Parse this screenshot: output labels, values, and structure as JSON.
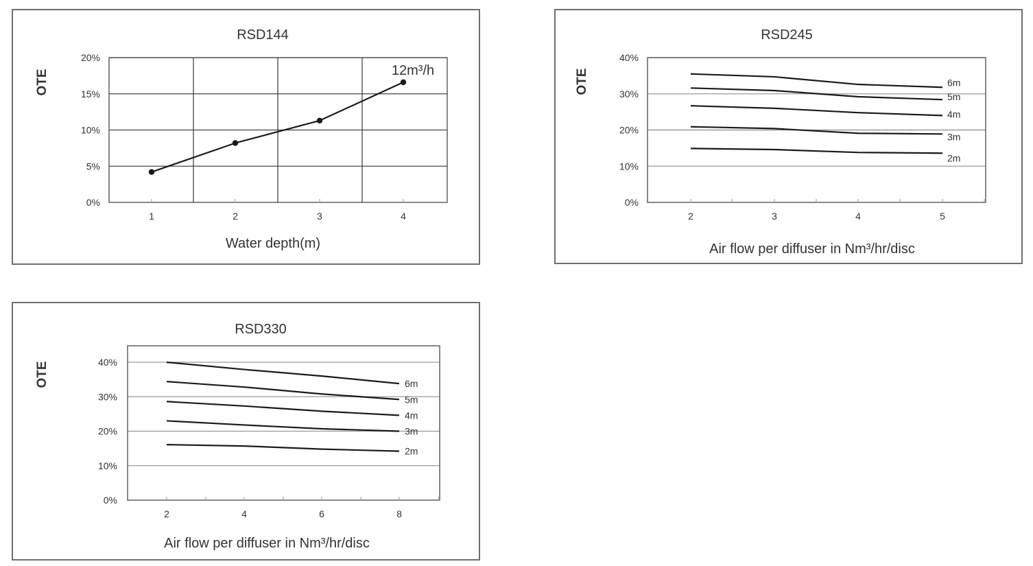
{
  "chart_data": [
    {
      "type": "line",
      "title": "RSD144",
      "xlabel": "Water depth(m)",
      "ylabel": "OTE",
      "categories": [
        1,
        2,
        3,
        4
      ],
      "x_tick_labels": [
        "1",
        "2",
        "3",
        "4"
      ],
      "y_tick_labels": [
        "0%",
        "5%",
        "10%",
        "15%",
        "20%"
      ],
      "ylim": [
        0,
        20
      ],
      "grid": "both",
      "annotation": "12m³/h",
      "series": [
        {
          "name": "12m³/h",
          "values": [
            4.2,
            8.2,
            11.3,
            16.6
          ],
          "markers": true
        }
      ]
    },
    {
      "type": "line",
      "title": "RSD245",
      "xlabel": "Air flow per diffuser in Nm³/hr/disc",
      "ylabel": "OTE",
      "x": [
        2,
        3,
        4,
        5
      ],
      "x_tick_labels": [
        "2",
        "3",
        "4",
        "5"
      ],
      "y_tick_labels": [
        "0%",
        "10%",
        "20%",
        "30%",
        "40%"
      ],
      "ylim": [
        0,
        40
      ],
      "grid": "horizontal",
      "legend_position": "inline-right",
      "series": [
        {
          "name": "6m",
          "values": [
            35.5,
            34.7,
            32.6,
            31.8
          ]
        },
        {
          "name": "5m",
          "values": [
            31.6,
            30.9,
            29.2,
            28.4
          ]
        },
        {
          "name": "4m",
          "values": [
            26.7,
            26.0,
            24.8,
            24.0
          ]
        },
        {
          "name": "3m",
          "values": [
            20.9,
            20.4,
            19.1,
            18.9
          ]
        },
        {
          "name": "2m",
          "values": [
            14.9,
            14.6,
            13.8,
            13.6
          ]
        }
      ]
    },
    {
      "type": "line",
      "title": "RSD330",
      "xlabel": "Air flow per diffuser in Nm³/hr/disc",
      "ylabel": "OTE",
      "x": [
        2,
        4,
        6,
        8
      ],
      "x_tick_labels": [
        "2",
        "4",
        "6",
        "8"
      ],
      "y_tick_labels": [
        "0%",
        "10%",
        "20%",
        "30%",
        "40%"
      ],
      "ylim": [
        0,
        40
      ],
      "grid": "horizontal",
      "legend_position": "inline-right",
      "series": [
        {
          "name": "6m",
          "values": [
            40.0,
            37.9,
            36.0,
            33.8
          ]
        },
        {
          "name": "5m",
          "values": [
            34.4,
            32.8,
            30.8,
            29.2
          ]
        },
        {
          "name": "4m",
          "values": [
            28.6,
            27.3,
            25.8,
            24.6
          ]
        },
        {
          "name": "3m",
          "values": [
            23.0,
            21.8,
            20.7,
            20.0
          ]
        },
        {
          "name": "2m",
          "values": [
            16.1,
            15.7,
            14.8,
            14.2
          ]
        }
      ]
    }
  ],
  "colors": {
    "line": "#1a1a1a",
    "grid": "#9a9a9a",
    "frame": "#6e6e6e",
    "text": "#333333"
  }
}
